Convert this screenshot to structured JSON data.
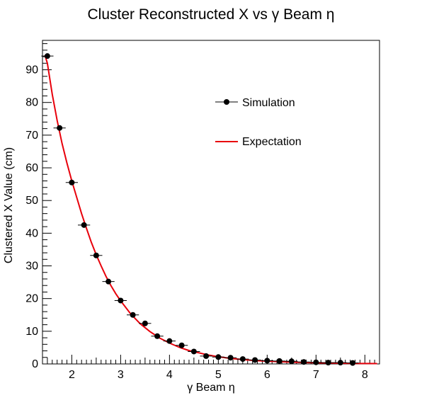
{
  "chart_data": {
    "type": "scatter",
    "title": "Cluster Reconstructed X vs   γ Beam  η",
    "xlabel": "γ Beam  η",
    "ylabel": "Clustered X Value (cm)",
    "xlim": [
      1.4,
      8.3
    ],
    "ylim": [
      0,
      99
    ],
    "x_ticks": [
      2,
      3,
      4,
      5,
      6,
      7,
      8
    ],
    "y_ticks": [
      0,
      10,
      20,
      30,
      40,
      50,
      60,
      70,
      80,
      90
    ],
    "grid": false,
    "legend_position": "top-right",
    "series": [
      {
        "name": "Simulation",
        "kind": "markers-with-errorbars",
        "color": "#000000",
        "x_error": 0.125,
        "x": [
          1.5,
          1.75,
          2.0,
          2.25,
          2.5,
          2.75,
          3.0,
          3.25,
          3.5,
          3.75,
          4.0,
          4.25,
          4.5,
          4.75,
          5.0,
          5.25,
          5.5,
          5.75,
          6.0,
          6.25,
          6.5,
          6.75,
          7.0,
          7.25,
          7.5,
          7.75
        ],
        "values": [
          94.2,
          72.2,
          55.5,
          42.5,
          33.2,
          25.2,
          19.4,
          15.0,
          12.4,
          8.5,
          7.0,
          5.7,
          3.8,
          2.4,
          2.1,
          1.9,
          1.5,
          1.2,
          1.0,
          0.9,
          0.8,
          0.6,
          0.5,
          0.4,
          0.4,
          0.3
        ]
      },
      {
        "name": "Expectation",
        "kind": "line",
        "color": "#e8000b",
        "x": [
          1.45,
          1.5,
          1.6,
          1.7,
          1.8,
          1.9,
          2.0,
          2.1,
          2.2,
          2.3,
          2.4,
          2.5,
          2.6,
          2.7,
          2.8,
          2.9,
          3.0,
          3.2,
          3.4,
          3.6,
          3.8,
          4.0,
          4.2,
          4.4,
          4.6,
          4.8,
          5.0,
          5.25,
          5.5,
          5.75,
          6.0,
          6.5,
          7.0,
          7.5,
          8.0,
          8.25
        ],
        "values": [
          94.5,
          92.0,
          82.5,
          74.5,
          67.5,
          61.5,
          56.0,
          51.0,
          46.0,
          41.5,
          37.2,
          33.4,
          30.0,
          26.8,
          24.0,
          21.5,
          19.3,
          15.4,
          12.3,
          9.9,
          7.9,
          6.4,
          5.1,
          4.1,
          3.4,
          2.7,
          2.2,
          1.7,
          1.35,
          1.05,
          0.85,
          0.55,
          0.35,
          0.22,
          0.14,
          0.1
        ]
      }
    ]
  }
}
